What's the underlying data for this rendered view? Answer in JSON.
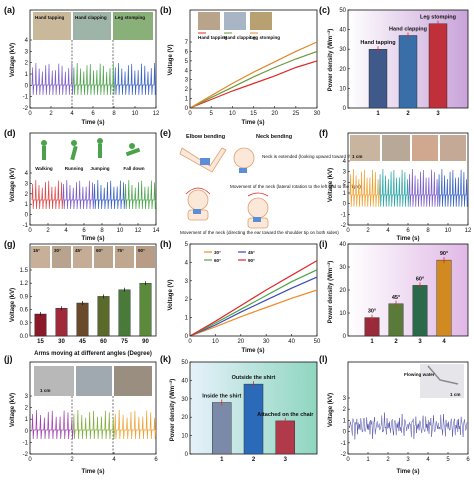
{
  "panels": {
    "a": {
      "label": "(a)",
      "ylabel": "Voltage (kV)",
      "xlabel": "Time (s)",
      "xticks": [
        "0",
        "2",
        "4",
        "6",
        "8",
        "10",
        "12"
      ],
      "yticks": [
        "-2",
        "-1",
        "0",
        "1",
        "2",
        "3",
        "4"
      ],
      "photos": [
        "Hand tapping",
        "Hand clapping",
        "Leg stomping"
      ],
      "colors": [
        "#7b5cc9",
        "#4aa34a",
        "#3a62c4"
      ]
    },
    "b": {
      "label": "(b)",
      "ylabel": "Voltage (V)",
      "xlabel": "Time (s)",
      "xticks": [
        "0",
        "5",
        "10",
        "15",
        "20",
        "25",
        "30"
      ],
      "yticks": [
        "0",
        "1",
        "2",
        "3",
        "4",
        "5",
        "6",
        "7"
      ],
      "photos": [
        "Hand tapping",
        "Hand clapping",
        "Leg stomping"
      ]
    },
    "c": {
      "label": "(c)",
      "ylabel": "Power density (Wm⁻²)",
      "yticks": [
        "0",
        "10",
        "20",
        "30",
        "40",
        "50"
      ],
      "xticks": [
        "1",
        "2",
        "3"
      ]
    },
    "d": {
      "label": "(d)",
      "ylabel": "Voltage (kV)",
      "xlabel": "Time (s)",
      "xticks": [
        "0",
        "2",
        "4",
        "6",
        "8",
        "10",
        "12",
        "14"
      ],
      "yticks": [
        "-1",
        "0",
        "1",
        "2",
        "3",
        "4"
      ],
      "photos": [
        "Walking",
        "Running",
        "Jumping",
        "Fall down"
      ],
      "colors": [
        "#e04848",
        "#7b5cc9",
        "#3a62c4",
        "#4aa34a"
      ]
    },
    "e": {
      "label": "(e)",
      "titles": [
        "Elbow bending",
        "Neck bending"
      ],
      "notes": [
        "Neck is extended (looking upward toward the ceiling)",
        "Movement of the neck (directing the ear toward the shoulder tip on both sides)",
        "Movement of the neck (lateral rotation to the left and to the right)"
      ]
    },
    "f": {
      "label": "(f)",
      "ylabel": "Voltage (kV)",
      "xlabel": "Time (s)",
      "xticks": [
        "0",
        "2",
        "4",
        "6",
        "8",
        "10",
        "12"
      ],
      "yticks": [
        "-2",
        "-1",
        "0",
        "1",
        "2",
        "3",
        "4"
      ],
      "photo_tag": "1 cm",
      "colors": [
        "#f0a030",
        "#2aa6a6",
        "#7b5cc9",
        "#3a62c4"
      ]
    },
    "g": {
      "label": "(g)",
      "ylabel": "Voltage (kV)",
      "xlabel": "Arms moving at different angles (Degree)",
      "yticks": [
        "0.0",
        "0.3",
        "0.6",
        "0.9",
        "1.2",
        "1.5"
      ],
      "angle_tags": [
        "15°",
        "30°",
        "45°",
        "60°",
        "75°",
        "90°"
      ]
    },
    "h": {
      "label": "(h)",
      "ylabel": "Voltage (V)",
      "xlabel": "Time (s)",
      "xticks": [
        "0",
        "10",
        "20",
        "30",
        "40",
        "50"
      ],
      "yticks": [
        "0",
        "1",
        "2",
        "3",
        "4",
        "5"
      ]
    },
    "i": {
      "label": "(i)",
      "ylabel": "Power density (Wm⁻²)",
      "yticks": [
        "0",
        "10",
        "20",
        "30",
        "40"
      ],
      "xticks": [
        "1",
        "2",
        "3",
        "4"
      ]
    },
    "j": {
      "label": "(j)",
      "ylabel": "Voltage (kV)",
      "xlabel": "Time (s)",
      "xticks": [
        "0",
        "2",
        "4",
        "6"
      ],
      "yticks": [
        "-2",
        "-1",
        "0",
        "1",
        "2",
        "3"
      ],
      "photo_tag": "1 cm",
      "colors": [
        "#a040b0",
        "#7fae3a",
        "#f0a030"
      ]
    },
    "k": {
      "label": "(k)",
      "ylabel": "Power density (Wm⁻²)",
      "yticks": [
        "0",
        "10",
        "20",
        "30",
        "40",
        "50"
      ],
      "xticks": [
        "1",
        "2",
        "3"
      ]
    },
    "l": {
      "label": "(l)",
      "ylabel": "Voltage (kV)",
      "xlabel": "Time (s)",
      "xticks": [
        "0",
        "1",
        "2",
        "3",
        "4",
        "5",
        "6"
      ],
      "yticks": [
        "-2",
        "-1",
        "0",
        "1",
        "2",
        "3"
      ],
      "photo_tag": "Flowing water",
      "photo_tag2": "1 cm",
      "color": "#4a4aa8"
    }
  },
  "chart_data": [
    {
      "type": "line",
      "panel": "b",
      "x": [
        0,
        5,
        10,
        15,
        20,
        25,
        30
      ],
      "series": [
        {
          "name": "Hand tapping",
          "color": "#e02828",
          "values": [
            0,
            0.9,
            1.8,
            2.6,
            3.4,
            4.3,
            5.0
          ]
        },
        {
          "name": "Hand clapping",
          "color": "#6a9a3a",
          "values": [
            0,
            1.1,
            2.2,
            3.3,
            4.3,
            5.2,
            6.0
          ]
        },
        {
          "name": "Leg stomping",
          "color": "#e08a28",
          "values": [
            0,
            1.3,
            2.6,
            3.8,
            4.9,
            6.0,
            7.0
          ]
        }
      ],
      "ylim": [
        0,
        7
      ],
      "xlim": [
        0,
        30
      ],
      "xlabel": "Time (s)",
      "ylabel": "Voltage (V)"
    },
    {
      "type": "bar",
      "panel": "c",
      "categories": [
        "1",
        "2",
        "3"
      ],
      "values": [
        30,
        37,
        43
      ],
      "bar_labels": [
        "Hand tapping",
        "Hand clapping",
        "Leg stomping"
      ],
      "ylim": [
        0,
        50
      ],
      "ylabel": "Power density (Wm⁻²)"
    },
    {
      "type": "bar",
      "panel": "g",
      "categories": [
        "15",
        "30",
        "45",
        "60",
        "75",
        "90"
      ],
      "values": [
        0.5,
        0.63,
        0.75,
        0.9,
        1.05,
        1.2
      ],
      "ylim": [
        0,
        1.5
      ],
      "xlabel": "Arms moving at different angles (Degree)",
      "ylabel": "Voltage (kV)"
    },
    {
      "type": "line",
      "panel": "h",
      "x": [
        0,
        10,
        20,
        30,
        40,
        50
      ],
      "series": [
        {
          "name": "30°",
          "color": "#f08a28",
          "values": [
            0,
            0.5,
            1.05,
            1.55,
            2.05,
            2.5
          ]
        },
        {
          "name": "45°",
          "color": "#3a4ab8",
          "values": [
            0,
            0.6,
            1.3,
            1.95,
            2.6,
            3.2
          ]
        },
        {
          "name": "60°",
          "color": "#4aa34a",
          "values": [
            0,
            0.7,
            1.45,
            2.2,
            2.95,
            3.6
          ]
        },
        {
          "name": "90°",
          "color": "#e02828",
          "values": [
            0,
            0.8,
            1.65,
            2.5,
            3.3,
            4.1
          ]
        }
      ],
      "ylim": [
        0,
        5
      ],
      "xlim": [
        0,
        50
      ],
      "xlabel": "Time (s)",
      "ylabel": "Voltage (V)"
    },
    {
      "type": "bar",
      "panel": "i",
      "categories": [
        "1",
        "2",
        "3",
        "4"
      ],
      "values": [
        8,
        14,
        22,
        33
      ],
      "bar_labels": [
        "30°",
        "45°",
        "60°",
        "90°"
      ],
      "ylim": [
        0,
        40
      ],
      "ylabel": "Power density (Wm⁻²)"
    },
    {
      "type": "bar",
      "panel": "k",
      "categories": [
        "1",
        "2",
        "3"
      ],
      "values": [
        28,
        38,
        18
      ],
      "bar_labels": [
        "Inside the shirt",
        "Outside the shirt",
        "Attached on the chair"
      ],
      "ylim": [
        0,
        50
      ],
      "ylabel": "Power density (Wm⁻²)"
    }
  ]
}
